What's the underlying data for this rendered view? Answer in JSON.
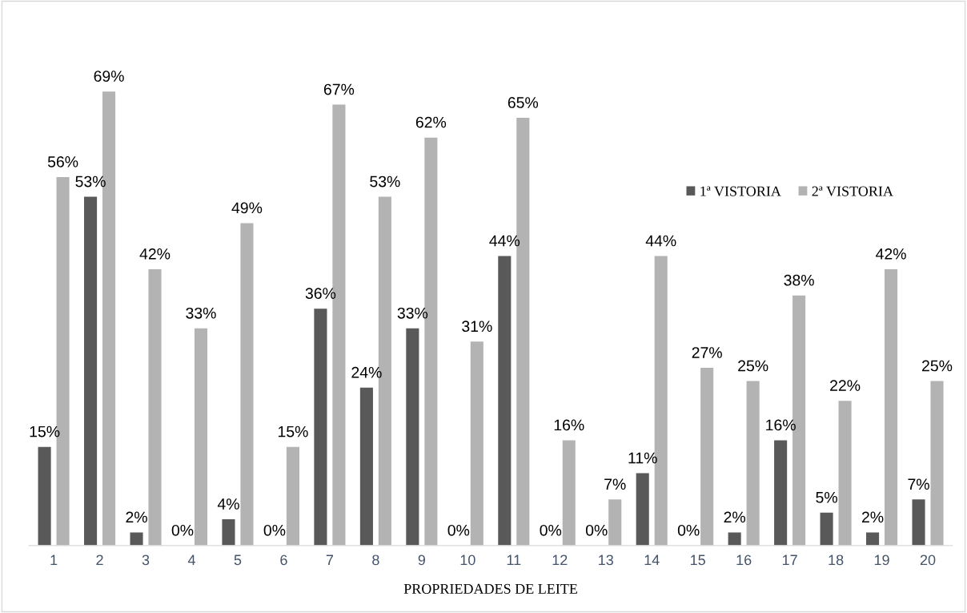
{
  "chart_data": {
    "type": "bar",
    "xlabel": "PROPRIEDADES DE LEITE",
    "categories": [
      "1",
      "2",
      "3",
      "4",
      "5",
      "6",
      "7",
      "8",
      "9",
      "10",
      "11",
      "12",
      "13",
      "14",
      "15",
      "16",
      "17",
      "18",
      "19",
      "20"
    ],
    "series": [
      {
        "name": "1ª VISTORIA",
        "color": "#595959",
        "values": [
          15,
          53,
          2,
          0,
          4,
          0,
          36,
          24,
          33,
          0,
          44,
          0,
          0,
          11,
          0,
          2,
          16,
          5,
          2,
          7
        ],
        "value_labels": [
          "15%",
          "53%",
          "2%",
          "0%",
          "4%",
          "0%",
          "36%",
          "24%",
          "33%",
          "0%",
          "44%",
          "0%",
          "0%",
          "11%",
          "0%",
          "2%",
          "16%",
          "5%",
          "2%",
          "7%"
        ]
      },
      {
        "name": "2ª VISTORIA",
        "color": "#b3b3b3",
        "values": [
          56,
          69,
          42,
          33,
          49,
          15,
          67,
          53,
          62,
          31,
          65,
          16,
          7,
          44,
          27,
          25,
          38,
          22,
          42,
          25
        ],
        "value_labels": [
          "56%",
          "69%",
          "42%",
          "33%",
          "49%",
          "15%",
          "67%",
          "53%",
          "62%",
          "31%",
          "65%",
          "16%",
          "7%",
          "44%",
          "27%",
          "25%",
          "38%",
          "22%",
          "42%",
          "25%"
        ]
      }
    ],
    "legend": "right",
    "grid": false
  }
}
